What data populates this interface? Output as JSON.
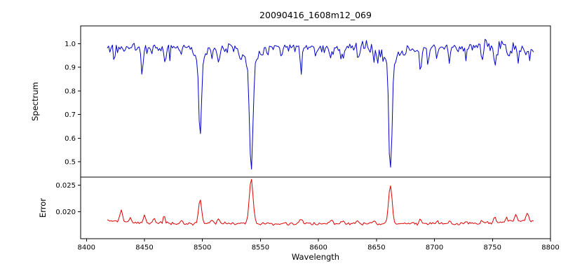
{
  "chart_data": {
    "type": "line",
    "title": "20090416_1608m12_069",
    "xlabel": "Wavelength",
    "xlim": [
      8395,
      8800
    ],
    "x_data_range": [
      8418,
      8786
    ],
    "x_ticks": {
      "values": [
        8400,
        8450,
        8500,
        8550,
        8600,
        8650,
        8700,
        8750,
        8800
      ],
      "labels": [
        "8400",
        "8450",
        "8500",
        "8550",
        "8600",
        "8650",
        "8700",
        "8750",
        "8800"
      ]
    },
    "panels": [
      {
        "name": "spectrum",
        "ylabel": "Spectrum",
        "color": "#0000cc",
        "ylim": [
          0.435,
          1.075
        ],
        "y_ticks": {
          "values": [
            1.0,
            0.9,
            0.8,
            0.7,
            0.6,
            0.5
          ],
          "labels": [
            "1.0",
            "0.9",
            "0.8",
            "0.7",
            "0.6",
            "0.5"
          ]
        },
        "continuum_level": 0.985,
        "absorption_lines": [
          {
            "center": 8498,
            "min_flux": 0.6,
            "core_sigma": 1.2,
            "wing_depth": 0.05,
            "wing_sigma": 5
          },
          {
            "center": 8542,
            "min_flux": 0.465,
            "core_sigma": 1.5,
            "wing_depth": 0.06,
            "wing_sigma": 7
          },
          {
            "center": 8662,
            "min_flux": 0.47,
            "core_sigma": 1.4,
            "wing_depth": 0.06,
            "wing_sigma": 6
          }
        ],
        "minor_features": [
          {
            "center": 8424,
            "depth": 0.05,
            "sigma": 0.8
          },
          {
            "center": 8433,
            "depth": 0.03,
            "sigma": 0.7
          },
          {
            "center": 8448,
            "depth": 0.1,
            "sigma": 0.9
          },
          {
            "center": 8456,
            "depth": 0.035,
            "sigma": 0.7
          },
          {
            "center": 8468,
            "depth": 0.05,
            "sigma": 0.8
          },
          {
            "center": 8482,
            "depth": 0.035,
            "sigma": 0.7
          },
          {
            "center": 8508,
            "depth": 0.03,
            "sigma": 0.7
          },
          {
            "center": 8514,
            "depth": 0.06,
            "sigma": 0.9
          },
          {
            "center": 8521,
            "depth": 0.03,
            "sigma": 0.7
          },
          {
            "center": 8533,
            "depth": 0.04,
            "sigma": 0.8
          },
          {
            "center": 8556,
            "depth": 0.03,
            "sigma": 0.8
          },
          {
            "center": 8568,
            "depth": 0.035,
            "sigma": 0.8
          },
          {
            "center": 8585,
            "depth": 0.055,
            "sigma": 1.0
          },
          {
            "center": 8598,
            "depth": 0.035,
            "sigma": 0.8
          },
          {
            "center": 8611,
            "depth": 0.045,
            "sigma": 0.8
          },
          {
            "center": 8621,
            "depth": 0.05,
            "sigma": 0.9
          },
          {
            "center": 8634,
            "depth": 0.05,
            "sigma": 0.8
          },
          {
            "center": 8648,
            "depth": 0.055,
            "sigma": 0.9
          },
          {
            "center": 8674,
            "depth": 0.04,
            "sigma": 0.8
          },
          {
            "center": 8688,
            "depth": 0.1,
            "sigma": 1.0
          },
          {
            "center": 8695,
            "depth": 0.04,
            "sigma": 0.8
          },
          {
            "center": 8702,
            "depth": 0.045,
            "sigma": 0.8
          },
          {
            "center": 8713,
            "depth": 0.05,
            "sigma": 0.8
          },
          {
            "center": 8727,
            "depth": 0.05,
            "sigma": 0.8
          },
          {
            "center": 8741,
            "depth": 0.05,
            "sigma": 0.9
          },
          {
            "center": 8752,
            "depth": 0.09,
            "sigma": 1.0
          },
          {
            "center": 8764,
            "depth": 0.05,
            "sigma": 0.8
          },
          {
            "center": 8772,
            "depth": 0.06,
            "sigma": 0.9
          },
          {
            "center": 8782,
            "depth": 0.05,
            "sigma": 0.8
          }
        ],
        "noise": {
          "seed": 20090416,
          "base_amp": 0.01,
          "spike_prob": 0.05,
          "spike_max": 0.05,
          "rough_regions": [
            {
              "from": 8418,
              "to": 8445,
              "amp": 0.012
            },
            {
              "from": 8600,
              "to": 8668,
              "amp": 0.016
            },
            {
              "from": 8735,
              "to": 8790,
              "amp": 0.017
            }
          ]
        },
        "sample_step": 1.1
      },
      {
        "name": "error",
        "ylabel": "Error",
        "color": "#e00000",
        "ylim": [
          0.015,
          0.0265
        ],
        "y_ticks": {
          "values": [
            0.025,
            0.02
          ],
          "labels": [
            "0.025",
            "0.020"
          ]
        },
        "baseline": 0.0178,
        "peaks": [
          {
            "center": 8430,
            "height": 0.0022,
            "sigma": 1.0
          },
          {
            "center": 8438,
            "height": 0.0008,
            "sigma": 0.8
          },
          {
            "center": 8450,
            "height": 0.0012,
            "sigma": 1.0
          },
          {
            "center": 8458,
            "height": 0.0008,
            "sigma": 0.8
          },
          {
            "center": 8467,
            "height": 0.0013,
            "sigma": 0.9
          },
          {
            "center": 8482,
            "height": 0.0006,
            "sigma": 0.8
          },
          {
            "center": 8498,
            "height": 0.0047,
            "sigma": 1.3
          },
          {
            "center": 8508,
            "height": 0.0007,
            "sigma": 0.8
          },
          {
            "center": 8514,
            "height": 0.0009,
            "sigma": 1.0
          },
          {
            "center": 8542,
            "height": 0.0083,
            "sigma": 1.6
          },
          {
            "center": 8585,
            "height": 0.0007,
            "sigma": 1.2
          },
          {
            "center": 8611,
            "height": 0.0005,
            "sigma": 1.0
          },
          {
            "center": 8621,
            "height": 0.0005,
            "sigma": 1.0
          },
          {
            "center": 8634,
            "height": 0.0005,
            "sigma": 0.9
          },
          {
            "center": 8648,
            "height": 0.0006,
            "sigma": 1.0
          },
          {
            "center": 8662,
            "height": 0.0072,
            "sigma": 1.5
          },
          {
            "center": 8688,
            "height": 0.0008,
            "sigma": 1.0
          },
          {
            "center": 8702,
            "height": 0.0005,
            "sigma": 0.8
          },
          {
            "center": 8713,
            "height": 0.0005,
            "sigma": 0.8
          },
          {
            "center": 8727,
            "height": 0.0005,
            "sigma": 0.8
          },
          {
            "center": 8741,
            "height": 0.0007,
            "sigma": 0.8
          },
          {
            "center": 8752,
            "height": 0.0013,
            "sigma": 1.0
          },
          {
            "center": 8762,
            "height": 0.001,
            "sigma": 0.9
          },
          {
            "center": 8770,
            "height": 0.0013,
            "sigma": 0.9
          },
          {
            "center": 8780,
            "height": 0.0016,
            "sigma": 1.0
          },
          {
            "center": 8418,
            "height": 0.0005,
            "sigma": 25
          },
          {
            "center": 8786,
            "height": 0.0006,
            "sigma": 20
          }
        ],
        "noise": {
          "amp": 0.00018
        },
        "sample_step": 1.1
      }
    ]
  }
}
